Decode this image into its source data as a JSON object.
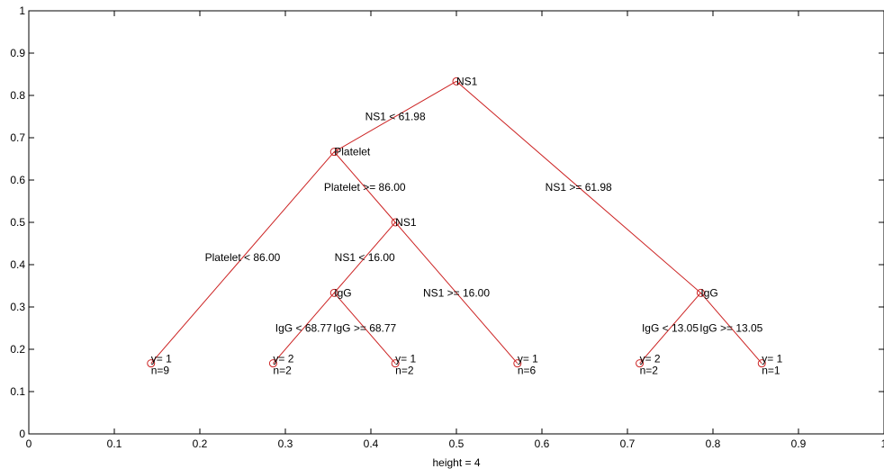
{
  "diagram": {
    "type": "decision-tree",
    "xlabel": "height = 4",
    "xlim": [
      0,
      1
    ],
    "ylim": [
      0,
      1
    ],
    "x_ticks": [
      "0",
      "0.1",
      "0.2",
      "0.3",
      "0.4",
      "0.5",
      "0.6",
      "0.7",
      "0.8",
      "0.9",
      "1"
    ],
    "y_ticks": [
      "0",
      "0.1",
      "0.2",
      "0.3",
      "0.4",
      "0.5",
      "0.6",
      "0.7",
      "0.8",
      "0.9",
      "1"
    ],
    "line_color": "#cc2222",
    "node_marker_color": "#cc2222",
    "nodes": [
      {
        "id": "root",
        "x": 0.5,
        "y": 0.8333,
        "label": "NS1"
      },
      {
        "id": "platelet",
        "x": 0.3571,
        "y": 0.6667,
        "label": "Platelet"
      },
      {
        "id": "igg_right",
        "x": 0.7857,
        "y": 0.3333,
        "label": "IgG"
      },
      {
        "id": "ns1_inner",
        "x": 0.4286,
        "y": 0.5,
        "label": "NS1"
      },
      {
        "id": "igg_left",
        "x": 0.3571,
        "y": 0.3333,
        "label": "IgG"
      },
      {
        "id": "leaf1",
        "x": 0.1429,
        "y": 0.1667,
        "label": "y= 1",
        "count": "n=9"
      },
      {
        "id": "leaf2",
        "x": 0.2857,
        "y": 0.1667,
        "label": "y= 2",
        "count": "n=2"
      },
      {
        "id": "leaf3",
        "x": 0.4286,
        "y": 0.1667,
        "label": "y= 1",
        "count": "n=2"
      },
      {
        "id": "leaf4",
        "x": 0.5714,
        "y": 0.1667,
        "label": "y= 1",
        "count": "n=6"
      },
      {
        "id": "leaf5",
        "x": 0.7143,
        "y": 0.1667,
        "label": "y= 2",
        "count": "n=2"
      },
      {
        "id": "leaf6",
        "x": 0.8571,
        "y": 0.1667,
        "label": "y= 1",
        "count": "n=1"
      }
    ],
    "edges": [
      {
        "from": "root",
        "to": "platelet",
        "label": "NS1 < 61.98"
      },
      {
        "from": "root",
        "to": "igg_right",
        "label": "NS1 >= 61.98"
      },
      {
        "from": "platelet",
        "to": "leaf1",
        "label": "Platelet < 86.00"
      },
      {
        "from": "platelet",
        "to": "ns1_inner",
        "label": "Platelet >= 86.00"
      },
      {
        "from": "ns1_inner",
        "to": "igg_left",
        "label": "NS1 < 16.00"
      },
      {
        "from": "ns1_inner",
        "to": "leaf4",
        "label": "NS1 >= 16.00"
      },
      {
        "from": "igg_left",
        "to": "leaf2",
        "label": "IgG < 68.77"
      },
      {
        "from": "igg_left",
        "to": "leaf3",
        "label": "IgG >= 68.77"
      },
      {
        "from": "igg_right",
        "to": "leaf5",
        "label": "IgG < 13.05"
      },
      {
        "from": "igg_right",
        "to": "leaf6",
        "label": "IgG >= 13.05"
      }
    ]
  }
}
